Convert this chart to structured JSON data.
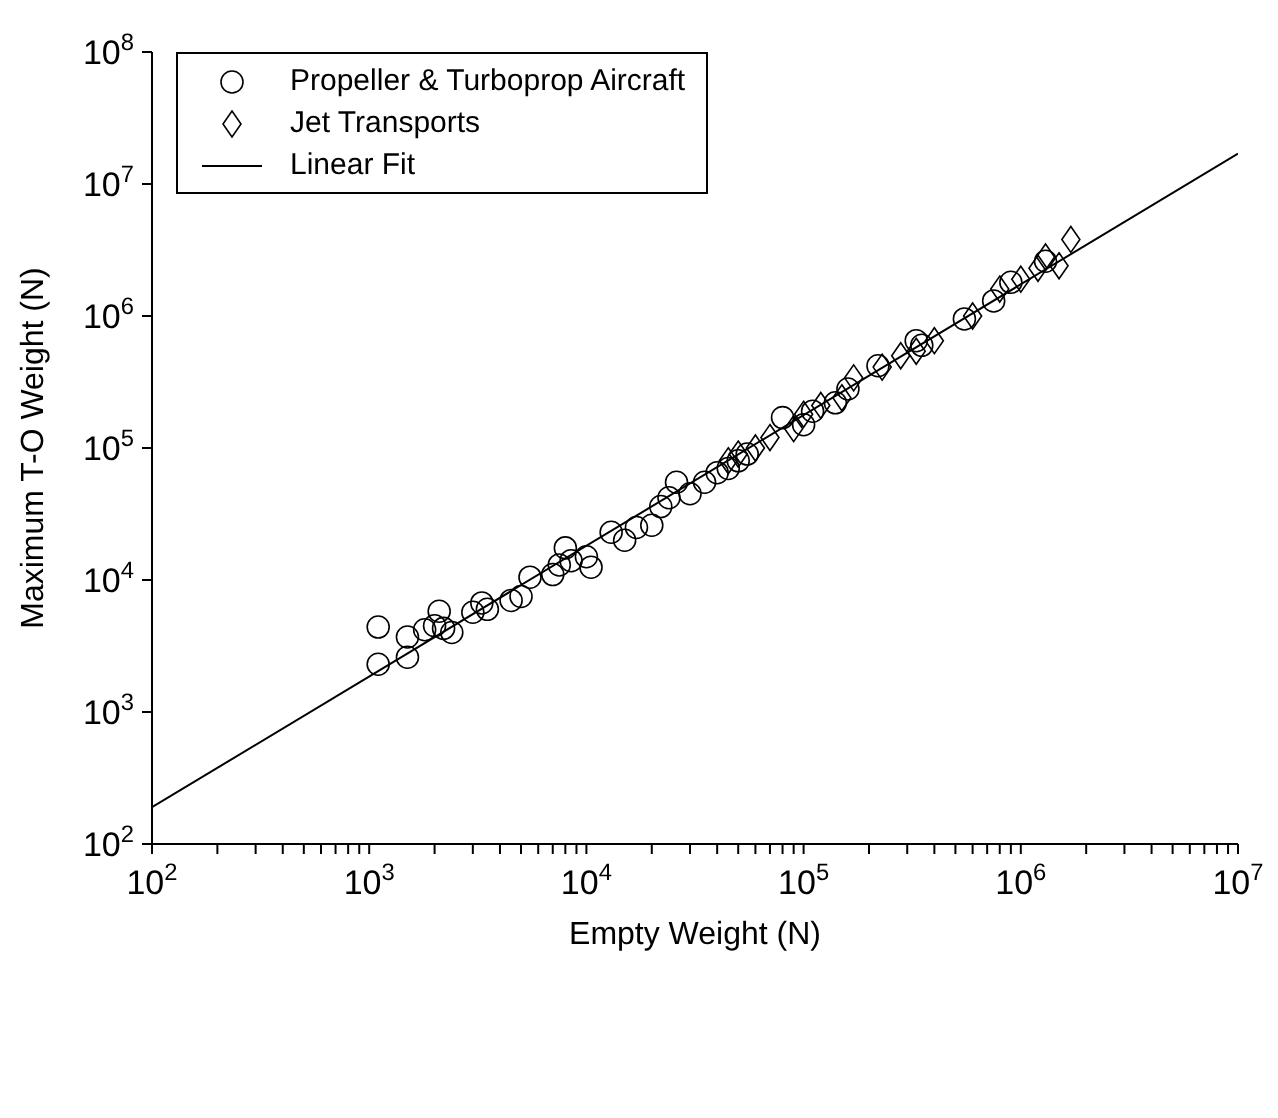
{
  "chart_data": {
    "type": "scatter",
    "xlabel": "Empty Weight (N)",
    "ylabel": "Maximum T-O Weight (N)",
    "log": "xy",
    "grid": false,
    "legend": "top left",
    "xlim": [
      100,
      10000000
    ],
    "ylim": [
      100,
      100000000
    ],
    "xticks": [
      {
        "value": 100,
        "label": "10$^{2}$"
      },
      {
        "value": 200,
        "label": null
      },
      {
        "value": 300,
        "label": null
      },
      {
        "value": 400,
        "label": null
      },
      {
        "value": 500,
        "label": null
      },
      {
        "value": 600,
        "label": null
      },
      {
        "value": 700,
        "label": null
      },
      {
        "value": 800,
        "label": null
      },
      {
        "value": 900,
        "label": null
      },
      {
        "value": 1000,
        "label": "10$^{3}$"
      },
      {
        "value": 2000,
        "label": null
      },
      {
        "value": 3000,
        "label": null
      },
      {
        "value": 4000,
        "label": null
      },
      {
        "value": 5000,
        "label": null
      },
      {
        "value": 6000,
        "label": null
      },
      {
        "value": 7000,
        "label": null
      },
      {
        "value": 8000,
        "label": null
      },
      {
        "value": 9000,
        "label": null
      },
      {
        "value": 10000,
        "label": "10$^{4}$"
      },
      {
        "value": 20000,
        "label": null
      },
      {
        "value": 30000,
        "label": null
      },
      {
        "value": 40000,
        "label": null
      },
      {
        "value": 50000,
        "label": null
      },
      {
        "value": 60000,
        "label": null
      },
      {
        "value": 70000,
        "label": null
      },
      {
        "value": 80000,
        "label": null
      },
      {
        "value": 90000,
        "label": null
      },
      {
        "value": 100000,
        "label": "10$^{5}$"
      },
      {
        "value": 200000,
        "label": null
      },
      {
        "value": 300000,
        "label": null
      },
      {
        "value": 400000,
        "label": null
      },
      {
        "value": 500000,
        "label": null
      },
      {
        "value": 600000,
        "label": null
      },
      {
        "value": 700000,
        "label": null
      },
      {
        "value": 800000,
        "label": null
      },
      {
        "value": 900000,
        "label": null
      },
      {
        "value": 1000000,
        "label": "10$^{6}$"
      },
      {
        "value": 2000000,
        "label": null
      },
      {
        "value": 3000000,
        "label": null
      },
      {
        "value": 4000000,
        "label": null
      },
      {
        "value": 5000000,
        "label": null
      },
      {
        "value": 6000000,
        "label": null
      },
      {
        "value": 7000000,
        "label": null
      },
      {
        "value": 8000000,
        "label": null
      },
      {
        "value": 9000000,
        "label": null
      },
      {
        "value": 10000000,
        "label": "10$^{7}$"
      }
    ],
    "yticks": [
      {
        "value": 100,
        "label": "10$^{2}$"
      },
      {
        "value": 1000,
        "label": "10$^{3}$"
      },
      {
        "value": 10000,
        "label": "10$^{4}$"
      },
      {
        "value": 100000,
        "label": "10$^{5}$"
      },
      {
        "value": 1000000,
        "label": "10$^{6}$"
      },
      {
        "value": 10000000,
        "label": "10$^{7}$"
      },
      {
        "value": 100000000,
        "label": "10$^{8}$"
      }
    ],
    "series": [
      {
        "name": "Propeller & Turboprop Aircraft",
        "marker": "circle",
        "color": "#000000",
        "x": [
          1100,
          1100,
          1500,
          1500,
          1800,
          2000,
          2100,
          2200,
          2400,
          3000,
          3300,
          3500,
          4500,
          5000,
          5500,
          7000,
          7500,
          8000,
          8500,
          10000,
          10500,
          13000,
          15000,
          17000,
          20000,
          22000,
          24000,
          26000,
          30000,
          35000,
          40000,
          45000,
          50000,
          55000,
          80000,
          100000,
          110000,
          140000,
          160000,
          220000,
          330000,
          350000,
          550000,
          750000,
          900000,
          1300000
        ],
        "values": [
          2300,
          4400,
          2600,
          3700,
          4200,
          4500,
          5800,
          4300,
          4000,
          5700,
          6700,
          6000,
          7000,
          7500,
          10500,
          11000,
          13000,
          17500,
          14000,
          15000,
          12500,
          23000,
          20000,
          25000,
          26000,
          36000,
          42000,
          55000,
          45000,
          55000,
          65000,
          70000,
          80000,
          90000,
          170000,
          150000,
          190000,
          220000,
          280000,
          420000,
          650000,
          600000,
          950000,
          1300000,
          1800000,
          2600000
        ]
      },
      {
        "name": "Jet Transports",
        "marker": "diamond",
        "color": "#000000",
        "x": [
          45000,
          50000,
          60000,
          70000,
          90000,
          100000,
          120000,
          150000,
          170000,
          230000,
          280000,
          330000,
          400000,
          600000,
          800000,
          1000000,
          1200000,
          1300000,
          1500000,
          1700000
        ],
        "values": [
          80000,
          90000,
          100000,
          120000,
          140000,
          180000,
          210000,
          240000,
          340000,
          410000,
          500000,
          540000,
          650000,
          1000000,
          1600000,
          1900000,
          2300000,
          2800000,
          2400000,
          3800000
        ]
      },
      {
        "name": "Linear Fit",
        "type": "line",
        "marker": "none",
        "line_style": "solid",
        "color": "#000000",
        "x": [
          100,
          10000000
        ],
        "values": [
          190,
          17000000
        ]
      }
    ]
  }
}
